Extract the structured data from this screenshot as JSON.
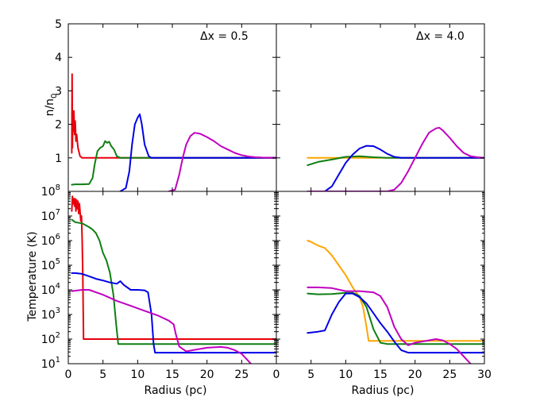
{
  "colors": {
    "red": "#e8000b",
    "green": "#0f7f12",
    "blue": "#0000e6",
    "magenta": "#c000c0",
    "orange": "#ffa500"
  },
  "labels": {
    "density_ylabel_main": "n/n",
    "density_ylabel_sub": "0",
    "temperature_ylabel": "Temperature (K)",
    "xlabel_left": "Radius (pc)",
    "xlabel_right": "Radius (pc)",
    "annot_left": "Δx = 0.5",
    "annot_right": "Δx = 4.0"
  },
  "chart_data": [
    {
      "panel": "top-left",
      "type": "line",
      "annotation": "Δx = 0.5",
      "ylabel": "n/n0",
      "xlim": [
        0,
        30
      ],
      "ylim": [
        0,
        5
      ],
      "yticks": [
        "1",
        "2",
        "3",
        "4",
        "5"
      ],
      "series": [
        {
          "color": "red",
          "points": [
            [
              0.5,
              1.15
            ],
            [
              0.55,
              3.5
            ],
            [
              0.6,
              1.3
            ],
            [
              0.65,
              2.4
            ],
            [
              0.7,
              1.8
            ],
            [
              0.8,
              2.4
            ],
            [
              0.9,
              1.7
            ],
            [
              1.0,
              2.1
            ],
            [
              1.1,
              1.5
            ],
            [
              1.2,
              1.7
            ],
            [
              1.4,
              1.3
            ],
            [
              1.7,
              1.05
            ],
            [
              2.0,
              1.0
            ],
            [
              30,
              1.0
            ]
          ]
        },
        {
          "color": "green",
          "points": [
            [
              0.5,
              0.2
            ],
            [
              1,
              0.21
            ],
            [
              2,
              0.21
            ],
            [
              3,
              0.22
            ],
            [
              3.5,
              0.4
            ],
            [
              3.8,
              0.8
            ],
            [
              4.2,
              1.2
            ],
            [
              4.6,
              1.3
            ],
            [
              5,
              1.35
            ],
            [
              5.3,
              1.5
            ],
            [
              5.6,
              1.45
            ],
            [
              5.9,
              1.48
            ],
            [
              6.2,
              1.35
            ],
            [
              6.6,
              1.25
            ],
            [
              7,
              1.05
            ],
            [
              7.5,
              1.0
            ],
            [
              30,
              1.0
            ]
          ]
        },
        {
          "color": "blue",
          "points": [
            [
              7.5,
              0.0
            ],
            [
              8.3,
              0.1
            ],
            [
              8.8,
              0.6
            ],
            [
              9.2,
              1.4
            ],
            [
              9.6,
              2.0
            ],
            [
              10.0,
              2.2
            ],
            [
              10.3,
              2.3
            ],
            [
              10.6,
              2.0
            ],
            [
              11.0,
              1.4
            ],
            [
              11.6,
              1.05
            ],
            [
              12,
              1.0
            ],
            [
              30,
              1.0
            ]
          ]
        },
        {
          "color": "magenta",
          "points": [
            [
              14.5,
              0.0
            ],
            [
              15.4,
              0.05
            ],
            [
              16,
              0.5
            ],
            [
              16.5,
              1.0
            ],
            [
              17,
              1.4
            ],
            [
              17.6,
              1.65
            ],
            [
              18.2,
              1.75
            ],
            [
              19,
              1.72
            ],
            [
              20,
              1.62
            ],
            [
              21,
              1.5
            ],
            [
              22,
              1.35
            ],
            [
              23,
              1.25
            ],
            [
              24,
              1.15
            ],
            [
              25,
              1.08
            ],
            [
              26,
              1.04
            ],
            [
              27,
              1.02
            ],
            [
              28,
              1.01
            ],
            [
              30,
              1.0
            ]
          ]
        }
      ]
    },
    {
      "panel": "top-right",
      "type": "line",
      "annotation": "Δx = 4.0",
      "xlim": [
        0,
        30
      ],
      "ylim": [
        0,
        5
      ],
      "series": [
        {
          "color": "orange",
          "points": [
            [
              4.5,
              1.0
            ],
            [
              30,
              1.0
            ]
          ]
        },
        {
          "color": "green",
          "points": [
            [
              4.5,
              0.78
            ],
            [
              6,
              0.88
            ],
            [
              8,
              0.95
            ],
            [
              10,
              1.03
            ],
            [
              12,
              1.05
            ],
            [
              14,
              1.02
            ],
            [
              16,
              1.0
            ],
            [
              30,
              1.0
            ]
          ]
        },
        {
          "color": "blue",
          "points": [
            [
              4.5,
              0.0
            ],
            [
              7,
              0.0
            ],
            [
              8,
              0.15
            ],
            [
              9,
              0.5
            ],
            [
              10,
              0.85
            ],
            [
              11,
              1.1
            ],
            [
              12,
              1.28
            ],
            [
              13,
              1.36
            ],
            [
              14,
              1.35
            ],
            [
              15,
              1.25
            ],
            [
              16,
              1.12
            ],
            [
              17,
              1.03
            ],
            [
              18,
              1.0
            ],
            [
              30,
              1.0
            ]
          ]
        },
        {
          "color": "magenta",
          "points": [
            [
              4.5,
              0.0
            ],
            [
              16,
              0.0
            ],
            [
              17,
              0.05
            ],
            [
              18,
              0.25
            ],
            [
              19,
              0.6
            ],
            [
              20,
              1.0
            ],
            [
              21,
              1.4
            ],
            [
              22,
              1.75
            ],
            [
              23,
              1.88
            ],
            [
              23.5,
              1.9
            ],
            [
              24,
              1.82
            ],
            [
              25,
              1.6
            ],
            [
              26,
              1.35
            ],
            [
              27,
              1.15
            ],
            [
              28,
              1.05
            ],
            [
              29,
              1.02
            ],
            [
              30,
              1.0
            ]
          ]
        }
      ]
    },
    {
      "panel": "bottom-left",
      "type": "line",
      "yscale": "log",
      "ylabel": "Temperature (K)",
      "xlabel": "Radius (pc)",
      "xlim": [
        0,
        30
      ],
      "ylim": [
        1,
        8
      ],
      "yticks": [
        "10^1",
        "10^2",
        "10^3",
        "10^4",
        "10^5",
        "10^6",
        "10^7",
        "10^8"
      ],
      "xticks": [
        "0",
        "5",
        "10",
        "15",
        "20",
        "25"
      ],
      "series": [
        {
          "color": "red",
          "points": [
            [
              0.5,
              7.2
            ],
            [
              0.6,
              7.8
            ],
            [
              0.7,
              7.5
            ],
            [
              0.8,
              7.7
            ],
            [
              0.9,
              7.4
            ],
            [
              1.0,
              7.7
            ],
            [
              1.1,
              7.2
            ],
            [
              1.2,
              7.65
            ],
            [
              1.3,
              7.3
            ],
            [
              1.4,
              7.6
            ],
            [
              1.5,
              7.1
            ],
            [
              1.6,
              7.5
            ],
            [
              1.7,
              7.2
            ],
            [
              1.8,
              6.8
            ],
            [
              1.9,
              7.0
            ],
            [
              2.0,
              6.0
            ],
            [
              2.1,
              4.5
            ],
            [
              2.2,
              2.0
            ],
            [
              30,
              2.0
            ]
          ]
        },
        {
          "color": "green",
          "points": [
            [
              0.5,
              6.85
            ],
            [
              1,
              6.75
            ],
            [
              2,
              6.7
            ],
            [
              3,
              6.55
            ],
            [
              3.5,
              6.45
            ],
            [
              4,
              6.3
            ],
            [
              4.5,
              6.0
            ],
            [
              5,
              5.5
            ],
            [
              5.5,
              5.2
            ],
            [
              6,
              4.7
            ],
            [
              6.5,
              3.8
            ],
            [
              6.9,
              2.6
            ],
            [
              7.2,
              1.8
            ],
            [
              8,
              1.8
            ],
            [
              30,
              1.8
            ]
          ]
        },
        {
          "color": "blue",
          "points": [
            [
              0.5,
              4.68
            ],
            [
              1,
              4.68
            ],
            [
              2,
              4.65
            ],
            [
              3,
              4.55
            ],
            [
              4,
              4.45
            ],
            [
              5,
              4.38
            ],
            [
              6,
              4.3
            ],
            [
              7,
              4.25
            ],
            [
              7.5,
              4.35
            ],
            [
              8,
              4.2
            ],
            [
              9,
              4.0
            ],
            [
              10,
              4.0
            ],
            [
              11,
              3.98
            ],
            [
              11.5,
              3.9
            ],
            [
              12,
              3.0
            ],
            [
              12.3,
              1.8
            ],
            [
              12.5,
              1.45
            ],
            [
              14,
              1.45
            ],
            [
              30,
              1.45
            ]
          ]
        },
        {
          "color": "magenta",
          "points": [
            [
              0.5,
              3.95
            ],
            [
              2,
              4.0
            ],
            [
              3,
              4.0
            ],
            [
              5,
              3.8
            ],
            [
              7,
              3.55
            ],
            [
              9,
              3.35
            ],
            [
              11,
              3.15
            ],
            [
              13,
              2.95
            ],
            [
              14.5,
              2.75
            ],
            [
              15.2,
              2.6
            ],
            [
              15.5,
              2.2
            ],
            [
              16,
              1.7
            ],
            [
              17,
              1.5
            ],
            [
              18,
              1.55
            ],
            [
              20,
              1.65
            ],
            [
              22,
              1.68
            ],
            [
              23,
              1.65
            ],
            [
              24,
              1.55
            ],
            [
              25,
              1.4
            ],
            [
              26,
              1.1
            ],
            [
              26.5,
              0.95
            ]
          ]
        }
      ]
    },
    {
      "panel": "bottom-right",
      "type": "line",
      "yscale": "log",
      "xlabel": "Radius (pc)",
      "xlim": [
        0,
        30
      ],
      "ylim": [
        1,
        8
      ],
      "xticks": [
        "0",
        "5",
        "10",
        "15",
        "20",
        "25",
        "30"
      ],
      "series": [
        {
          "color": "orange",
          "points": [
            [
              4.5,
              6.0
            ],
            [
              5,
              5.95
            ],
            [
              6,
              5.8
            ],
            [
              7,
              5.7
            ],
            [
              8,
              5.4
            ],
            [
              9,
              5.0
            ],
            [
              10,
              4.6
            ],
            [
              11,
              4.1
            ],
            [
              12,
              3.7
            ],
            [
              12.5,
              3.3
            ],
            [
              13,
              2.5
            ],
            [
              13.3,
              1.93
            ],
            [
              14,
              1.93
            ],
            [
              30,
              1.93
            ]
          ]
        },
        {
          "color": "green",
          "points": [
            [
              4.5,
              3.85
            ],
            [
              6,
              3.82
            ],
            [
              8,
              3.83
            ],
            [
              10,
              3.88
            ],
            [
              11,
              3.88
            ],
            [
              12,
              3.75
            ],
            [
              13,
              3.3
            ],
            [
              14,
              2.4
            ],
            [
              15,
              1.85
            ],
            [
              16,
              1.8
            ],
            [
              30,
              1.8
            ]
          ]
        },
        {
          "color": "blue",
          "points": [
            [
              4.5,
              2.25
            ],
            [
              6,
              2.3
            ],
            [
              7,
              2.35
            ],
            [
              8,
              3.0
            ],
            [
              9,
              3.5
            ],
            [
              10,
              3.85
            ],
            [
              11,
              3.85
            ],
            [
              12,
              3.7
            ],
            [
              13,
              3.45
            ],
            [
              14,
              3.05
            ],
            [
              15,
              2.65
            ],
            [
              16,
              2.3
            ],
            [
              17,
              1.9
            ],
            [
              18,
              1.55
            ],
            [
              19,
              1.45
            ],
            [
              30,
              1.45
            ]
          ]
        },
        {
          "color": "magenta",
          "points": [
            [
              4.5,
              4.1
            ],
            [
              6,
              4.1
            ],
            [
              8,
              4.07
            ],
            [
              10,
              3.95
            ],
            [
              12,
              3.95
            ],
            [
              14,
              3.9
            ],
            [
              15,
              3.75
            ],
            [
              16,
              3.3
            ],
            [
              17,
              2.5
            ],
            [
              18,
              2.0
            ],
            [
              19,
              1.75
            ],
            [
              20,
              1.85
            ],
            [
              21,
              1.9
            ],
            [
              22,
              1.95
            ],
            [
              23,
              2.0
            ],
            [
              24,
              1.95
            ],
            [
              25,
              1.8
            ],
            [
              26,
              1.6
            ],
            [
              27,
              1.3
            ],
            [
              28,
              1.0
            ],
            [
              28.5,
              0.95
            ]
          ]
        }
      ]
    }
  ]
}
